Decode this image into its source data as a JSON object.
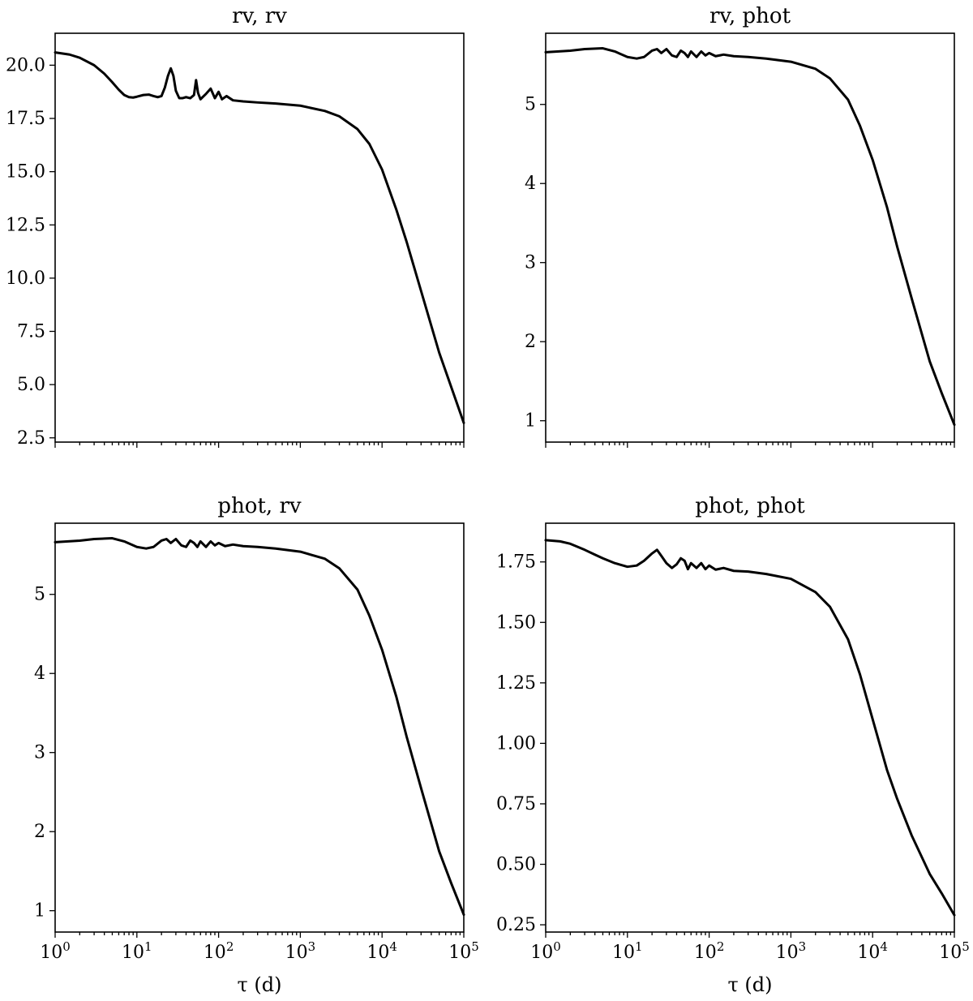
{
  "chart_data": [
    {
      "type": "line",
      "title": "rv, rv",
      "xlabel": "",
      "ylabel": "",
      "xscale": "log",
      "xlim": [
        1,
        100000
      ],
      "ylim": [
        2.3,
        21.5
      ],
      "yticks": [
        "2.5",
        "5.0",
        "7.5",
        "10.0",
        "12.5",
        "15.0",
        "17.5",
        "20.0"
      ],
      "yticks_values": [
        2.5,
        5.0,
        7.5,
        10.0,
        12.5,
        15.0,
        17.5,
        20.0
      ],
      "xticks_shown": false,
      "grid": false,
      "legend": "none",
      "color": "#000000",
      "series": [
        {
          "x": [
            1,
            1.5,
            2,
            3,
            4,
            5,
            6,
            7,
            8,
            9,
            10,
            12,
            14,
            16,
            18,
            20,
            22,
            24,
            26,
            28,
            30,
            33,
            36,
            40,
            45,
            50,
            53,
            56,
            60,
            70,
            80,
            90,
            100,
            110,
            125,
            150,
            200,
            300,
            500,
            1000,
            2000,
            3000,
            5000,
            7000,
            10000,
            15000,
            20000,
            30000,
            50000,
            70000,
            100000
          ],
          "y": [
            20.6,
            20.5,
            20.35,
            20.0,
            19.6,
            19.2,
            18.85,
            18.6,
            18.5,
            18.48,
            18.52,
            18.6,
            18.62,
            18.55,
            18.5,
            18.55,
            18.95,
            19.5,
            19.85,
            19.5,
            18.8,
            18.45,
            18.45,
            18.5,
            18.45,
            18.6,
            19.3,
            18.7,
            18.4,
            18.65,
            18.9,
            18.45,
            18.75,
            18.4,
            18.55,
            18.35,
            18.3,
            18.25,
            18.2,
            18.1,
            17.85,
            17.6,
            17.0,
            16.3,
            15.1,
            13.2,
            11.7,
            9.4,
            6.5,
            4.9,
            3.2
          ]
        }
      ]
    },
    {
      "type": "line",
      "title": "rv, phot",
      "xlabel": "",
      "ylabel": "",
      "xscale": "log",
      "xlim": [
        1,
        100000
      ],
      "ylim": [
        0.73,
        5.9
      ],
      "yticks": [
        "1",
        "2",
        "3",
        "4",
        "5"
      ],
      "yticks_values": [
        1,
        2,
        3,
        4,
        5
      ],
      "xticks_shown": false,
      "grid": false,
      "legend": "none",
      "color": "#000000",
      "series": [
        {
          "x": [
            1,
            2,
            3,
            5,
            7,
            10,
            13,
            16,
            20,
            23,
            26,
            30,
            35,
            40,
            45,
            50,
            55,
            60,
            70,
            80,
            90,
            100,
            120,
            150,
            200,
            300,
            500,
            1000,
            2000,
            3000,
            5000,
            7000,
            10000,
            15000,
            20000,
            30000,
            50000,
            70000,
            100000
          ],
          "y": [
            5.66,
            5.68,
            5.7,
            5.71,
            5.67,
            5.6,
            5.58,
            5.6,
            5.68,
            5.7,
            5.65,
            5.7,
            5.62,
            5.6,
            5.68,
            5.65,
            5.6,
            5.67,
            5.6,
            5.67,
            5.62,
            5.65,
            5.61,
            5.63,
            5.61,
            5.6,
            5.58,
            5.54,
            5.45,
            5.33,
            5.06,
            4.73,
            4.3,
            3.7,
            3.2,
            2.55,
            1.75,
            1.35,
            0.95
          ]
        }
      ]
    },
    {
      "type": "line",
      "title": "phot, rv",
      "xlabel": "τ (d)",
      "ylabel": "",
      "xscale": "log",
      "xlim": [
        1,
        100000
      ],
      "ylim": [
        0.73,
        5.9
      ],
      "yticks": [
        "1",
        "2",
        "3",
        "4",
        "5"
      ],
      "yticks_values": [
        1,
        2,
        3,
        4,
        5
      ],
      "xticks": [
        "10^0",
        "10^1",
        "10^2",
        "10^3",
        "10^4",
        "10^5"
      ],
      "xticks_values": [
        1,
        10,
        100,
        1000,
        10000,
        100000
      ],
      "grid": false,
      "legend": "none",
      "color": "#000000",
      "series": [
        {
          "x": [
            1,
            2,
            3,
            5,
            7,
            10,
            13,
            16,
            20,
            23,
            26,
            30,
            35,
            40,
            45,
            50,
            55,
            60,
            70,
            80,
            90,
            100,
            120,
            150,
            200,
            300,
            500,
            1000,
            2000,
            3000,
            5000,
            7000,
            10000,
            15000,
            20000,
            30000,
            50000,
            70000,
            100000
          ],
          "y": [
            5.66,
            5.68,
            5.7,
            5.71,
            5.67,
            5.6,
            5.58,
            5.6,
            5.68,
            5.7,
            5.65,
            5.7,
            5.62,
            5.6,
            5.68,
            5.65,
            5.6,
            5.67,
            5.6,
            5.67,
            5.62,
            5.65,
            5.61,
            5.63,
            5.61,
            5.6,
            5.58,
            5.54,
            5.45,
            5.33,
            5.06,
            4.73,
            4.3,
            3.7,
            3.2,
            2.55,
            1.75,
            1.35,
            0.95
          ]
        }
      ]
    },
    {
      "type": "line",
      "title": "phot, phot",
      "xlabel": "τ (d)",
      "ylabel": "",
      "xscale": "log",
      "xlim": [
        1,
        100000
      ],
      "ylim": [
        0.22,
        1.91
      ],
      "yticks": [
        "0.25",
        "0.50",
        "0.75",
        "1.00",
        "1.25",
        "1.50",
        "1.75"
      ],
      "yticks_values": [
        0.25,
        0.5,
        0.75,
        1.0,
        1.25,
        1.5,
        1.75
      ],
      "xticks": [
        "10^0",
        "10^1",
        "10^2",
        "10^3",
        "10^4",
        "10^5"
      ],
      "xticks_values": [
        1,
        10,
        100,
        1000,
        10000,
        100000
      ],
      "grid": false,
      "legend": "none",
      "color": "#000000",
      "series": [
        {
          "x": [
            1,
            1.5,
            2,
            3,
            4,
            5,
            7,
            10,
            13,
            16,
            20,
            23,
            26,
            30,
            35,
            40,
            45,
            50,
            55,
            60,
            70,
            80,
            90,
            100,
            120,
            150,
            200,
            300,
            500,
            1000,
            2000,
            3000,
            5000,
            7000,
            10000,
            15000,
            20000,
            30000,
            50000,
            70000,
            100000
          ],
          "y": [
            1.84,
            1.835,
            1.825,
            1.8,
            1.78,
            1.765,
            1.745,
            1.73,
            1.735,
            1.755,
            1.785,
            1.8,
            1.775,
            1.745,
            1.725,
            1.74,
            1.765,
            1.755,
            1.72,
            1.745,
            1.725,
            1.745,
            1.72,
            1.735,
            1.718,
            1.725,
            1.713,
            1.71,
            1.7,
            1.68,
            1.625,
            1.565,
            1.43,
            1.285,
            1.1,
            0.89,
            0.77,
            0.62,
            0.46,
            0.38,
            0.29
          ]
        }
      ]
    }
  ]
}
